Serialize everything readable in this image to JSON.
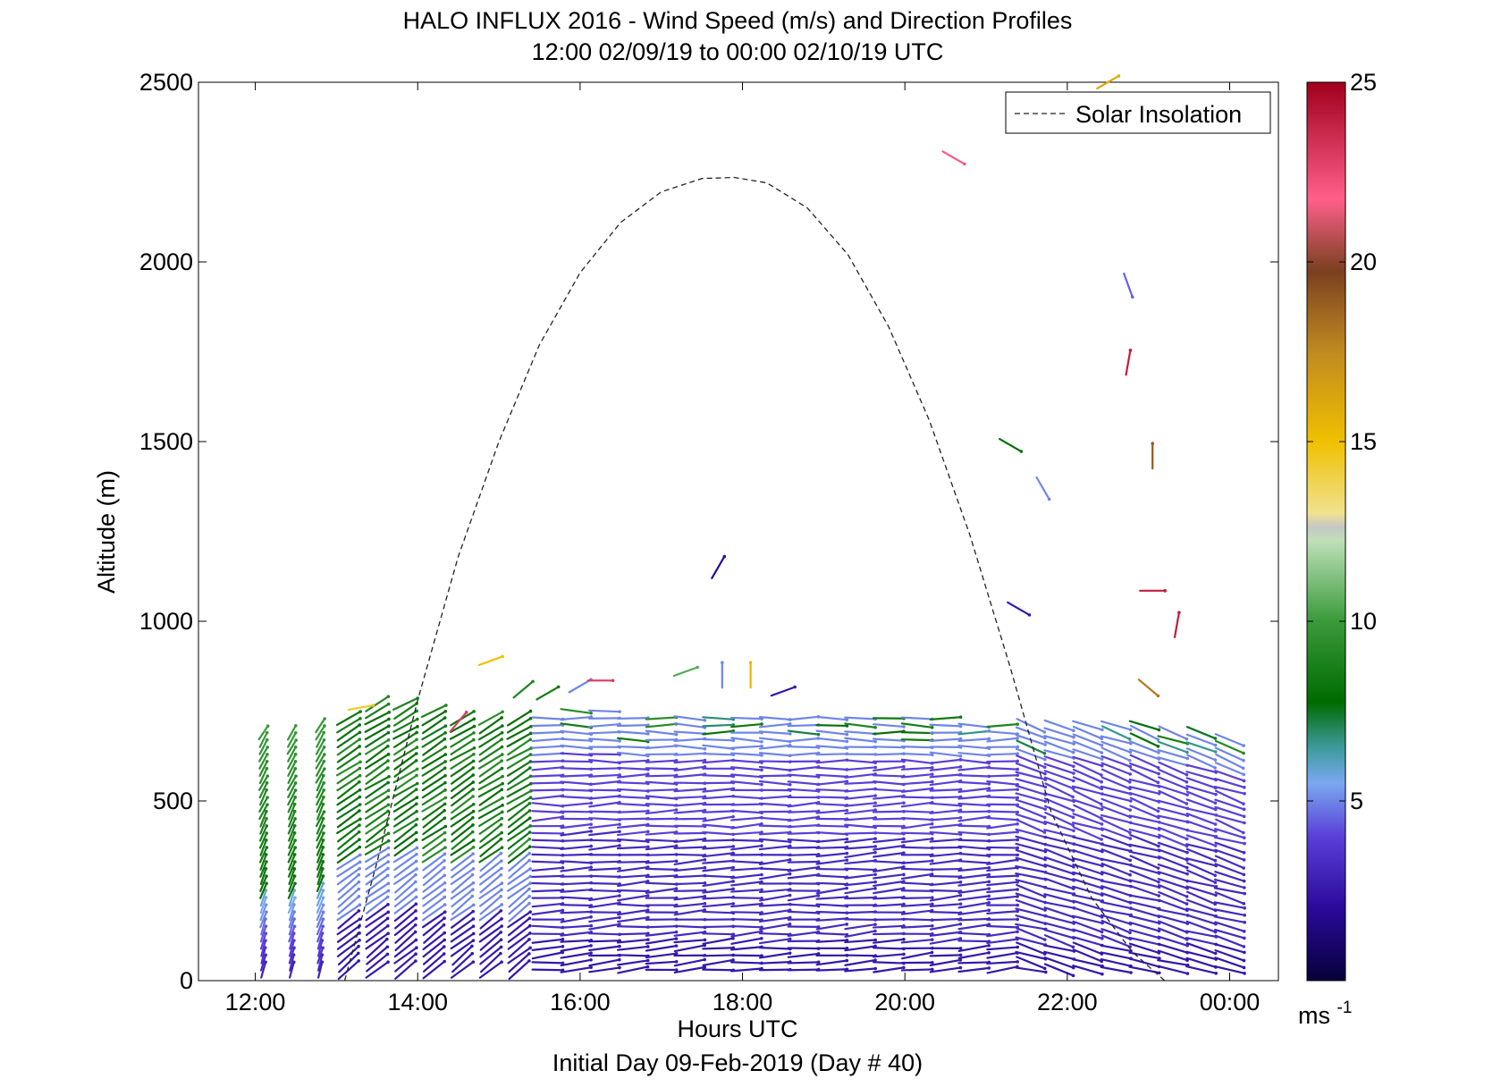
{
  "chart_data": {
    "type": "wind-barb-profile",
    "title": "HALO INFLUX 2016 - Wind Speed (m/s) and Direction Profiles",
    "subtitle": "12:00 02/09/19 to 00:00 02/10/19  UTC",
    "xlabel": "Hours UTC",
    "xlabel2": "Initial Day 09-Feb-2019 (Day # 40)",
    "ylabel": "Altitude (m)",
    "xlim": [
      11.3,
      24.6
    ],
    "ylim": [
      0,
      2500
    ],
    "x_ticks": [
      12,
      14,
      16,
      18,
      20,
      22,
      24
    ],
    "x_tick_labels": [
      "12:00",
      "14:00",
      "16:00",
      "18:00",
      "20:00",
      "22:00",
      "00:00"
    ],
    "y_ticks": [
      0,
      500,
      1000,
      1500,
      2000,
      2500
    ],
    "y_tick_labels": [
      "0",
      "500",
      "1000",
      "1500",
      "2000",
      "2500"
    ],
    "legend": {
      "position": "top-right",
      "entries": [
        {
          "name": "Solar Insolation",
          "style": "dashed",
          "color": "#000000"
        }
      ]
    },
    "colorbar": {
      "range": [
        0,
        25
      ],
      "ticks": [
        5,
        10,
        15,
        20,
        25
      ],
      "tick_labels": [
        "5",
        "10",
        "15",
        "20",
        "25"
      ],
      "unit": "ms",
      "unit_exp": "-1"
    },
    "solar_insolation": {
      "hours": [
        13.1,
        13.5,
        14.0,
        14.5,
        15.0,
        15.5,
        16.0,
        16.5,
        17.0,
        17.5,
        17.9,
        18.3,
        18.8,
        19.3,
        19.8,
        20.3,
        20.8,
        21.3,
        21.8,
        22.3,
        22.8,
        23.2
      ],
      "altitude_equiv": [
        0,
        330,
        780,
        1180,
        1500,
        1770,
        1970,
        2110,
        2195,
        2232,
        2235,
        2220,
        2150,
        2020,
        1820,
        1560,
        1240,
        870,
        470,
        230,
        80,
        0
      ]
    },
    "profiles": {
      "hours": [
        12.1,
        12.45,
        12.8,
        13.15,
        13.5,
        13.85,
        14.2,
        14.55,
        14.9,
        15.25,
        15.6,
        15.95,
        16.3,
        16.65,
        17.0,
        17.35,
        17.7,
        18.05,
        18.4,
        18.75,
        19.1,
        19.45,
        19.8,
        20.15,
        20.5,
        20.85,
        21.2,
        21.55,
        21.9,
        22.25,
        22.6,
        22.95,
        23.3,
        23.65,
        24.0
      ],
      "top_altitude_m": [
        700,
        700,
        720,
        740,
        780,
        780,
        760,
        740,
        740,
        740,
        740,
        750,
        750,
        740,
        740,
        740,
        740,
        740,
        730,
        730,
        740,
        740,
        740,
        730,
        730,
        720,
        720,
        720,
        720,
        720,
        720,
        720,
        700,
        700,
        680
      ],
      "low_level_speed_ms": 2.5,
      "upper_level_speed_ms_early": 8.5,
      "upper_level_speed_ms_late": 3.5
    },
    "isolated_barbs": [
      {
        "hour": 13.3,
        "altitude_m": 760,
        "speed_ms": 14.5,
        "dir_deg": 260
      },
      {
        "hour": 14.5,
        "altitude_m": 720,
        "speed_ms": 23,
        "dir_deg": 220
      },
      {
        "hour": 14.9,
        "altitude_m": 890,
        "speed_ms": 15,
        "dir_deg": 250
      },
      {
        "hour": 15.3,
        "altitude_m": 810,
        "speed_ms": 9,
        "dir_deg": 230
      },
      {
        "hour": 15.6,
        "altitude_m": 800,
        "speed_ms": 8.5,
        "dir_deg": 240
      },
      {
        "hour": 16.0,
        "altitude_m": 820,
        "speed_ms": 5,
        "dir_deg": 240
      },
      {
        "hour": 16.25,
        "altitude_m": 835,
        "speed_ms": 23,
        "dir_deg": 270
      },
      {
        "hour": 17.3,
        "altitude_m": 860,
        "speed_ms": 10.5,
        "dir_deg": 250
      },
      {
        "hour": 17.75,
        "altitude_m": 850,
        "speed_ms": 5,
        "dir_deg": 180
      },
      {
        "hour": 18.1,
        "altitude_m": 850,
        "speed_ms": 15.5,
        "dir_deg": 180
      },
      {
        "hour": 18.5,
        "altitude_m": 805,
        "speed_ms": 2.5,
        "dir_deg": 250
      },
      {
        "hour": 17.7,
        "altitude_m": 1150,
        "speed_ms": 2,
        "dir_deg": 210
      },
      {
        "hour": 20.6,
        "altitude_m": 2290,
        "speed_ms": 22,
        "dir_deg": 300
      },
      {
        "hour": 21.3,
        "altitude_m": 1490,
        "speed_ms": 8,
        "dir_deg": 300
      },
      {
        "hour": 21.7,
        "altitude_m": 1370,
        "speed_ms": 5,
        "dir_deg": 330
      },
      {
        "hour": 21.4,
        "altitude_m": 1035,
        "speed_ms": 2.5,
        "dir_deg": 300
      },
      {
        "hour": 22.5,
        "altitude_m": 2500,
        "speed_ms": 16,
        "dir_deg": 240
      },
      {
        "hour": 22.75,
        "altitude_m": 1935,
        "speed_ms": 4.5,
        "dir_deg": 340
      },
      {
        "hour": 22.75,
        "altitude_m": 1720,
        "speed_ms": 24,
        "dir_deg": 190
      },
      {
        "hour": 23.05,
        "altitude_m": 1460,
        "speed_ms": 19,
        "dir_deg": 180
      },
      {
        "hour": 23.05,
        "altitude_m": 1085,
        "speed_ms": 24,
        "dir_deg": 270
      },
      {
        "hour": 23.35,
        "altitude_m": 990,
        "speed_ms": 24,
        "dir_deg": 190
      },
      {
        "hour": 23.0,
        "altitude_m": 815,
        "speed_ms": 18,
        "dir_deg": 310
      }
    ]
  }
}
